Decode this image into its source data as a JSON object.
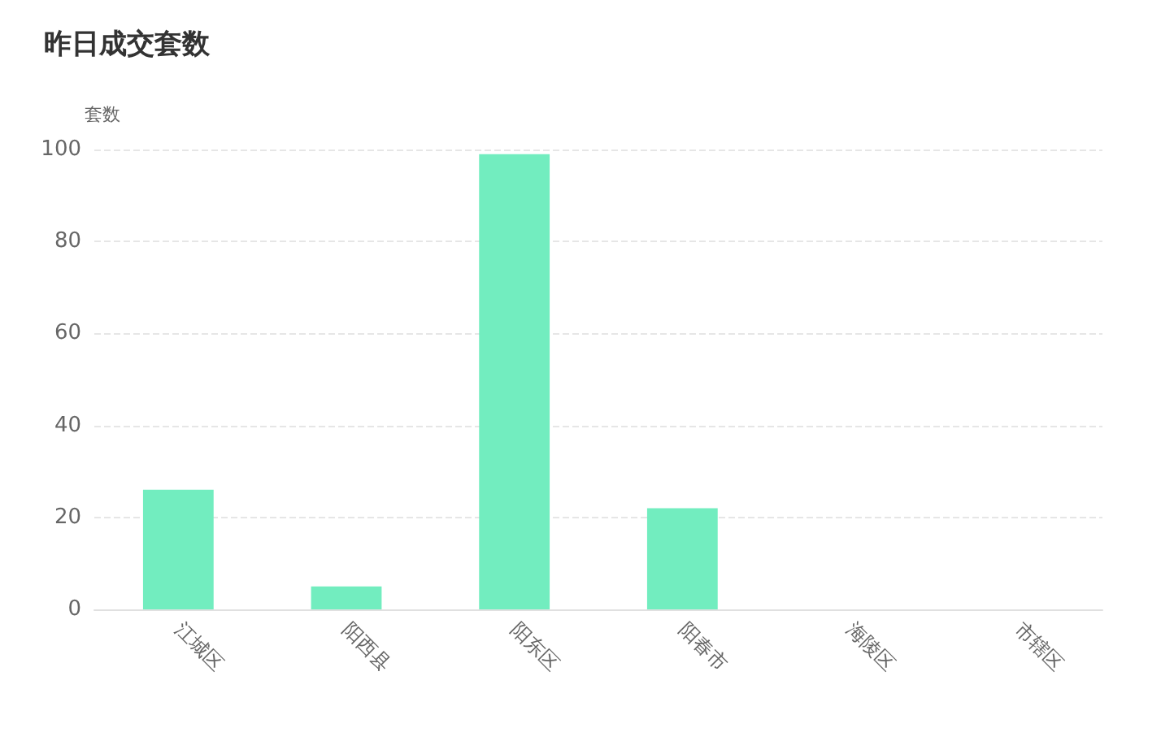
{
  "chart_data": {
    "type": "bar",
    "title": "昨日成交套数",
    "ylabel": "套数",
    "categories": [
      "江城区",
      "阳西县",
      "阳东区",
      "阳春市",
      "海陵区",
      "市辖区"
    ],
    "values": [
      26,
      5,
      99,
      22,
      0,
      0
    ],
    "color": "#72edbf",
    "ylim": [
      0,
      100
    ],
    "yticks": [
      0,
      20,
      40,
      60,
      80,
      100
    ],
    "grid": "y"
  }
}
